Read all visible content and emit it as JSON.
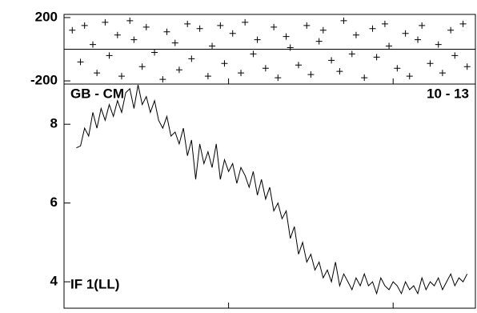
{
  "chart_data": [
    {
      "type": "scatter",
      "x": [
        2,
        4,
        5,
        7,
        8,
        10,
        11,
        13,
        14,
        16,
        17,
        19,
        20,
        22,
        24,
        25,
        27,
        28,
        30,
        31,
        33,
        35,
        36,
        38,
        39,
        41,
        43,
        44,
        46,
        47,
        49,
        51,
        52,
        54,
        55,
        57,
        59,
        60,
        62,
        63,
        65,
        67,
        68,
        70,
        71,
        73,
        75,
        76,
        78,
        79,
        81,
        83,
        84,
        86,
        87,
        89,
        91,
        92,
        94,
        95,
        97,
        98
      ],
      "values": [
        120,
        -80,
        150,
        30,
        -150,
        170,
        -40,
        90,
        -170,
        180,
        60,
        -110,
        140,
        -20,
        -190,
        110,
        40,
        -130,
        160,
        -60,
        130,
        -170,
        20,
        150,
        -90,
        100,
        -150,
        170,
        -30,
        60,
        -120,
        140,
        -180,
        80,
        10,
        -100,
        150,
        -160,
        50,
        120,
        -70,
        -140,
        180,
        -30,
        90,
        -180,
        130,
        -50,
        160,
        20,
        -120,
        100,
        -170,
        60,
        150,
        -90,
        30,
        -150,
        120,
        -40,
        160,
        -110
      ],
      "xlim": [
        0,
        100
      ],
      "ylim": [
        -220,
        220
      ],
      "yticks": [
        -200,
        200
      ],
      "refline": 0,
      "xticks": [
        40,
        80
      ]
    },
    {
      "type": "line",
      "x": [
        3,
        4,
        5,
        6,
        7,
        8,
        9,
        10,
        11,
        12,
        13,
        14,
        15,
        16,
        17,
        18,
        19,
        20,
        21,
        22,
        23,
        24,
        25,
        26,
        27,
        28,
        29,
        30,
        31,
        32,
        33,
        34,
        35,
        36,
        37,
        38,
        39,
        40,
        41,
        42,
        43,
        44,
        45,
        46,
        47,
        48,
        49,
        50,
        51,
        52,
        53,
        54,
        55,
        56,
        57,
        58,
        59,
        60,
        61,
        62,
        63,
        64,
        65,
        66,
        67,
        68,
        69,
        70,
        71,
        72,
        73,
        74,
        75,
        76,
        77,
        78,
        79,
        80,
        81,
        82,
        83,
        84,
        85,
        86,
        87,
        88,
        89,
        90,
        91,
        92,
        93,
        94,
        95,
        96,
        97,
        98
      ],
      "values": [
        7.4,
        7.45,
        7.9,
        7.7,
        8.3,
        7.9,
        8.4,
        8.1,
        8.5,
        8.2,
        8.6,
        8.3,
        8.8,
        8.9,
        8.4,
        9.0,
        8.5,
        8.7,
        8.3,
        8.6,
        8.1,
        7.9,
        8.2,
        7.7,
        7.8,
        7.5,
        7.9,
        7.2,
        7.6,
        6.6,
        7.5,
        7.0,
        7.3,
        6.9,
        7.5,
        6.6,
        7.1,
        6.8,
        7.0,
        6.5,
        6.9,
        6.7,
        6.4,
        6.8,
        6.2,
        6.6,
        6.1,
        6.4,
        5.8,
        6.0,
        5.6,
        5.8,
        5.1,
        5.4,
        4.7,
        5.0,
        4.5,
        4.7,
        4.3,
        4.5,
        4.1,
        4.3,
        4.0,
        4.5,
        3.9,
        4.2,
        4.0,
        3.8,
        4.1,
        3.9,
        4.2,
        3.9,
        4.0,
        3.7,
        4.1,
        3.9,
        3.8,
        4.0,
        3.9,
        3.7,
        4.0,
        3.8,
        3.9,
        3.7,
        4.1,
        3.8,
        4.0,
        3.9,
        4.1,
        3.8,
        4.0,
        4.2,
        3.9,
        4.1,
        4.0,
        4.2
      ],
      "color": "#000000",
      "xlim": [
        0,
        100
      ],
      "ylim": [
        3.33,
        9.02
      ],
      "yticks": [
        4,
        6,
        8
      ],
      "xticks": [
        40,
        80
      ],
      "annotations": [
        "GB - CM",
        "10 - 13",
        "IF 1(LL)"
      ]
    }
  ]
}
